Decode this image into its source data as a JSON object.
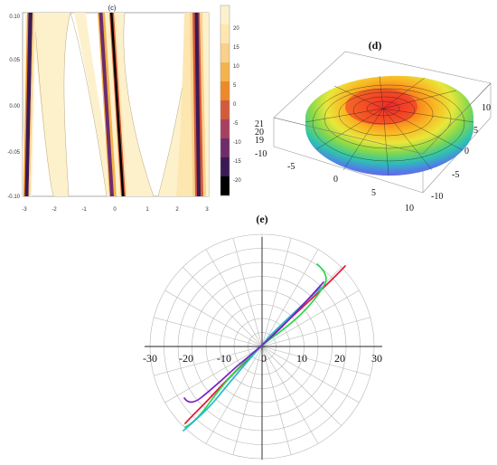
{
  "panels": {
    "c": {
      "title": "(c)",
      "x_ticks": [
        "-3",
        "-2",
        "-1",
        "0",
        "1",
        "2",
        "3"
      ],
      "y_ticks": [
        "0.10",
        "0.05",
        "0.00",
        "-0.05",
        "-0.10"
      ],
      "legend_ticks": [
        "20",
        "15",
        "10",
        "5",
        "0",
        "-5",
        "-10",
        "-15",
        "-20"
      ],
      "legend_colors": [
        "#fdf1cc",
        "#fde6b0",
        "#f9d08c",
        "#f3b44e",
        "#ec8a29",
        "#d45a3c",
        "#a7405e",
        "#6e2c6b",
        "#3a1a55",
        "#000000"
      ]
    },
    "d": {
      "title": "(d)",
      "z_ticks": [
        "21",
        "20",
        "19"
      ],
      "x_ticks": [
        "-10",
        "-5",
        "0",
        "5",
        "10"
      ],
      "y_ticks": [
        "-10",
        "-5",
        "0",
        "5",
        "10"
      ],
      "surface_colors": [
        "#f02a2a",
        "#f7731f",
        "#fbb121",
        "#e9e73a",
        "#84d94b",
        "#2fc2b0",
        "#4f7ee7",
        "#8950d8"
      ]
    },
    "e": {
      "title": "(e)",
      "axis_ticks": [
        "-30",
        "-20",
        "-10",
        "0",
        "10",
        "20",
        "30"
      ],
      "curves": [
        {
          "color": "#e8173a"
        },
        {
          "color": "#27d845"
        },
        {
          "color": "#1fb9d6"
        },
        {
          "color": "#7a22c9"
        }
      ]
    }
  }
}
